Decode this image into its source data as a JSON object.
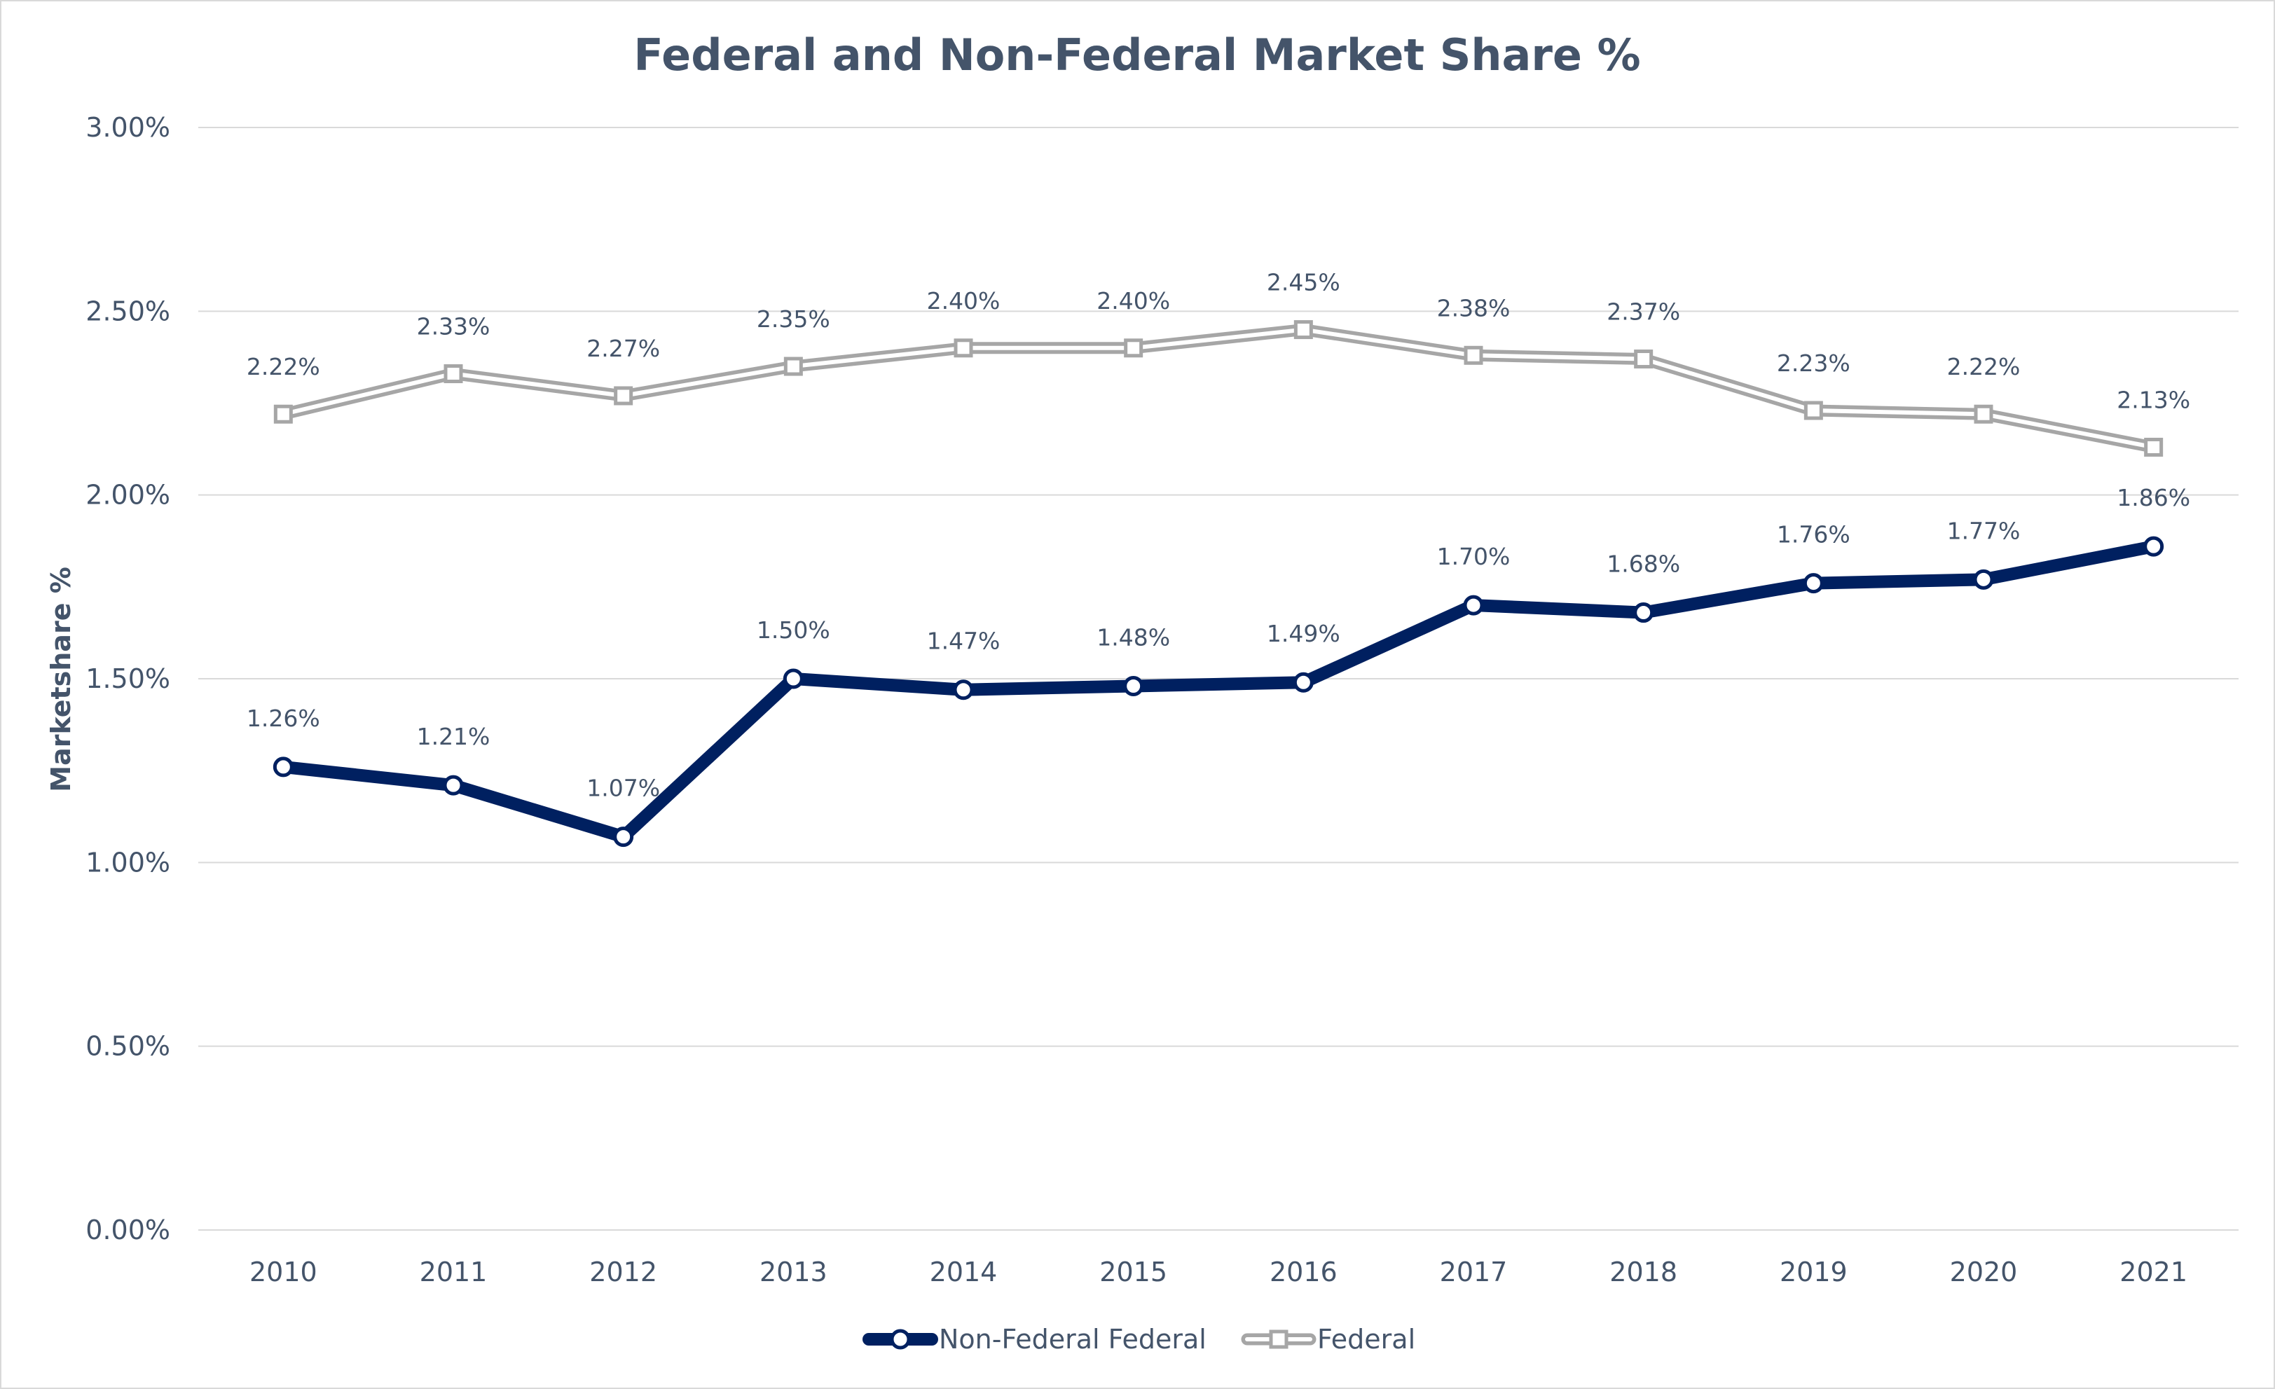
{
  "chart_data": {
    "type": "line",
    "title": "Federal and Non-Federal Market Share %",
    "xlabel": "",
    "ylabel": "Marketshare %",
    "ylim": [
      0,
      0.03
    ],
    "yticks": [
      "0.00%",
      "0.50%",
      "1.00%",
      "1.50%",
      "2.00%",
      "2.50%",
      "3.00%"
    ],
    "grid": true,
    "legend_position": "bottom",
    "categories": [
      "2010",
      "2011",
      "2012",
      "2013",
      "2014",
      "2015",
      "2016",
      "2017",
      "2018",
      "2019",
      "2020",
      "2021"
    ],
    "series": [
      {
        "name": "Non-Federal Federal",
        "color": "#002060",
        "marker": "circle",
        "values": [
          0.0126,
          0.0121,
          0.0107,
          0.015,
          0.0147,
          0.0148,
          0.0149,
          0.017,
          0.0168,
          0.0176,
          0.0177,
          0.0186
        ],
        "labels": [
          "1.26%",
          "1.21%",
          "1.07%",
          "1.50%",
          "1.47%",
          "1.48%",
          "1.49%",
          "1.70%",
          "1.68%",
          "1.76%",
          "1.77%",
          "1.86%"
        ]
      },
      {
        "name": "Federal",
        "color": "#a6a6a6",
        "marker": "square",
        "values": [
          0.0222,
          0.0233,
          0.0227,
          0.0235,
          0.024,
          0.024,
          0.0245,
          0.0238,
          0.0237,
          0.0223,
          0.0222,
          0.0213
        ],
        "labels": [
          "2.22%",
          "2.33%",
          "2.27%",
          "2.35%",
          "2.40%",
          "2.40%",
          "2.45%",
          "2.38%",
          "2.37%",
          "2.23%",
          "2.22%",
          "2.13%"
        ]
      }
    ]
  }
}
